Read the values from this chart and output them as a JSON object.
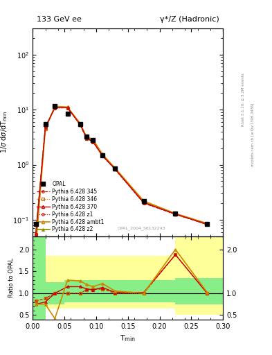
{
  "title_left": "133 GeV ee",
  "title_right": "γ*/Z (Hadronic)",
  "ylabel_main": "1/σ dσ/dT_min",
  "ylabel_ratio": "Ratio to OPAL",
  "xlabel": "T_min",
  "right_label_top": "Rivet 3.1.10, ≥ 3.2M events",
  "right_label_bottom": "mcplots.cern.ch [arXiv:1306.3436]",
  "watermark": "OPAL_2004_S6132243",
  "xdata": [
    0.005,
    0.02,
    0.035,
    0.055,
    0.075,
    0.085,
    0.095,
    0.11,
    0.13,
    0.175,
    0.225,
    0.275
  ],
  "opal_y": [
    0.085,
    5.5,
    11.5,
    8.5,
    5.5,
    3.2,
    2.8,
    1.5,
    0.85,
    0.22,
    0.13,
    0.085
  ],
  "p345_y": [
    0.055,
    4.8,
    10.8,
    10.8,
    5.3,
    3.0,
    2.6,
    1.45,
    0.82,
    0.2,
    0.125,
    0.082
  ],
  "p346_y": [
    0.055,
    4.8,
    10.8,
    10.8,
    5.3,
    3.0,
    2.6,
    1.45,
    0.82,
    0.2,
    0.125,
    0.082
  ],
  "p370_y": [
    0.055,
    4.7,
    10.9,
    10.9,
    5.35,
    3.05,
    2.65,
    1.47,
    0.83,
    0.205,
    0.127,
    0.083
  ],
  "pambt1_y": [
    0.03,
    4.5,
    11.5,
    11.2,
    5.6,
    3.2,
    2.9,
    1.55,
    0.87,
    0.22,
    0.13,
    0.086
  ],
  "pz1_y": [
    0.055,
    4.8,
    10.8,
    10.8,
    5.3,
    3.0,
    2.6,
    1.45,
    0.82,
    0.2,
    0.125,
    0.082
  ],
  "pz2_y": [
    0.055,
    4.8,
    10.9,
    10.9,
    5.4,
    3.1,
    2.7,
    1.47,
    0.84,
    0.21,
    0.128,
    0.083
  ],
  "p345_color": "#cc0000",
  "p346_color": "#cc6600",
  "p370_color": "#cc0000",
  "pambt1_color": "#cc8800",
  "pz1_color": "#cc0000",
  "pz2_color": "#888800",
  "opal_color": "#000000",
  "ratio_x": [
    0.005,
    0.02,
    0.035,
    0.055,
    0.075,
    0.085,
    0.095,
    0.11,
    0.13,
    0.175,
    0.225,
    0.275
  ],
  "ratio_p345": [
    0.82,
    0.88,
    1.0,
    1.0,
    1.0,
    1.08,
    1.08,
    1.1,
    1.0,
    1.0,
    1.88,
    1.0
  ],
  "ratio_p346": [
    0.82,
    0.88,
    1.0,
    1.0,
    1.0,
    1.08,
    1.08,
    1.1,
    1.0,
    1.0,
    1.88,
    1.0
  ],
  "ratio_p370": [
    0.75,
    0.8,
    1.0,
    1.15,
    1.15,
    1.1,
    1.08,
    1.13,
    1.02,
    1.02,
    1.88,
    1.0
  ],
  "ratio_pambt1": [
    0.75,
    0.75,
    0.42,
    1.3,
    1.28,
    1.2,
    1.15,
    1.22,
    1.05,
    1.0,
    2.0,
    1.02
  ],
  "ylim_main": [
    0.05,
    300
  ],
  "ylim_ratio": [
    0.4,
    2.3
  ],
  "xlim": [
    0.0,
    0.3
  ]
}
